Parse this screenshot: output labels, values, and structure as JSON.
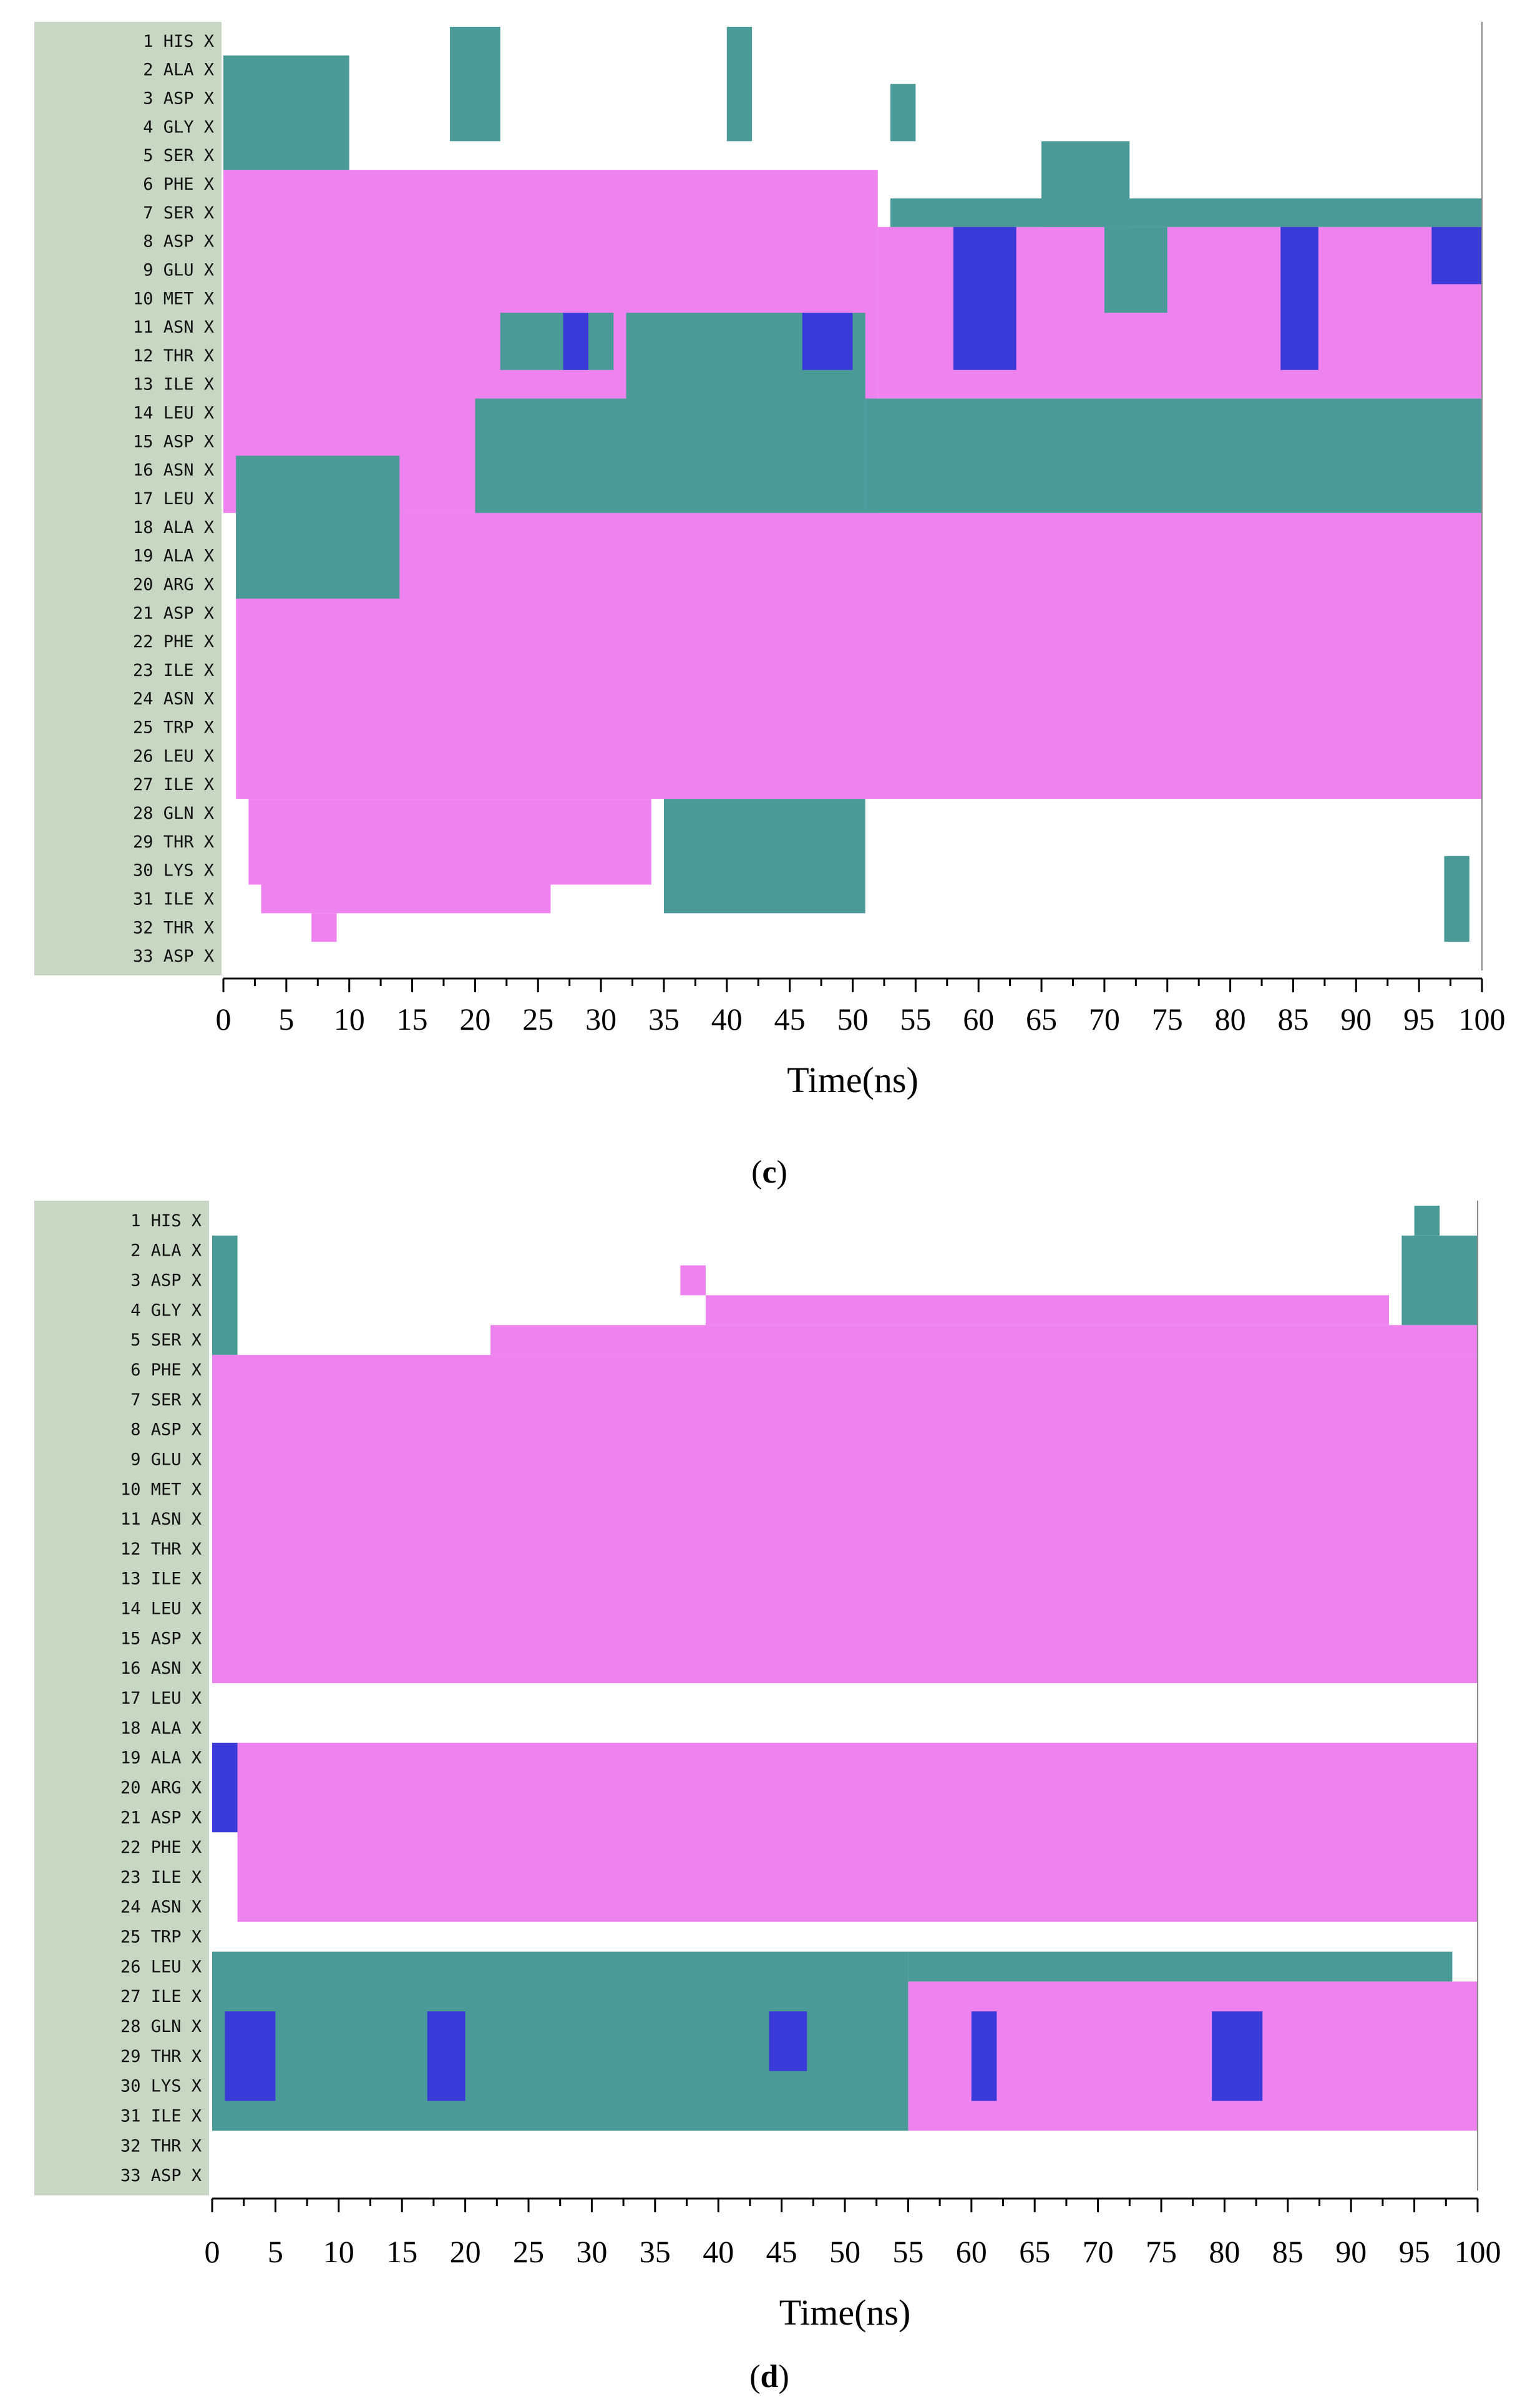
{
  "chart_data": [
    {
      "type": "heatmap",
      "title": "",
      "panel": "c",
      "xlabel": "Time(ns)",
      "ylabel": "",
      "xlim": [
        0,
        100
      ],
      "x_ticks": [
        "0",
        "5",
        "10",
        "15",
        "20",
        "25",
        "30",
        "35",
        "40",
        "45",
        "50",
        "55",
        "60",
        "65",
        "70",
        "75",
        "80",
        "85",
        "90",
        "95",
        "100"
      ],
      "residues": [
        "1 HIS X",
        "2 ALA X",
        "3 ASP X",
        "4 GLY X",
        "5 SER X",
        "6 PHE X",
        "7 SER X",
        "8 ASP X",
        "9 GLU X",
        "10 MET X",
        "11 ASN X",
        "12 THR X",
        "13 ILE X",
        "14 LEU X",
        "15 ASP X",
        "16 ASN X",
        "17 LEU X",
        "18 ALA X",
        "19 ALA X",
        "20 ARG X",
        "21 ASP X",
        "22 PHE X",
        "23 ILE X",
        "24 ASN X",
        "25 TRP X",
        "26 LEU X",
        "27 ILE X",
        "28 GLN X",
        "29 THR X",
        "30 LYS X",
        "31 ILE X",
        "32 THR X",
        "33 ASP X"
      ],
      "segments": [
        {
          "r0": 6,
          "r1": 17,
          "t0": 0,
          "t1": 52,
          "s": "alpha"
        },
        {
          "r0": 8,
          "r1": 13,
          "t0": 52,
          "t1": 100,
          "s": "alpha"
        },
        {
          "r0": 18,
          "r1": 27,
          "t0": 1,
          "t1": 100,
          "s": "alpha"
        },
        {
          "r0": 28,
          "r1": 30,
          "t0": 2,
          "t1": 34,
          "s": "alpha"
        },
        {
          "r0": 31,
          "r1": 31,
          "t0": 3,
          "t1": 26,
          "s": "alpha"
        },
        {
          "r0": 32,
          "r1": 32,
          "t0": 7,
          "t1": 9,
          "s": "alpha"
        },
        {
          "r0": 2,
          "r1": 5,
          "t0": 0,
          "t1": 10,
          "s": "turn"
        },
        {
          "r0": 1,
          "r1": 4,
          "t0": 18,
          "t1": 22,
          "s": "turn"
        },
        {
          "r0": 1,
          "r1": 4,
          "t0": 40,
          "t1": 42,
          "s": "turn"
        },
        {
          "r0": 3,
          "r1": 4,
          "t0": 53,
          "t1": 55,
          "s": "turn"
        },
        {
          "r0": 5,
          "r1": 7,
          "t0": 65,
          "t1": 72,
          "s": "turn"
        },
        {
          "r0": 7,
          "r1": 7,
          "t0": 53,
          "t1": 100,
          "s": "turn"
        },
        {
          "r0": 11,
          "r1": 12,
          "t0": 22,
          "t1": 31,
          "s": "turn"
        },
        {
          "r0": 11,
          "r1": 17,
          "t0": 32,
          "t1": 51,
          "s": "turn"
        },
        {
          "r0": 14,
          "r1": 17,
          "t0": 20,
          "t1": 32,
          "s": "turn"
        },
        {
          "r0": 14,
          "r1": 17,
          "t0": 51,
          "t1": 100,
          "s": "turn"
        },
        {
          "r0": 8,
          "r1": 10,
          "t0": 70,
          "t1": 75,
          "s": "turn"
        },
        {
          "r0": 16,
          "r1": 20,
          "t0": 1,
          "t1": 14,
          "s": "turn"
        },
        {
          "r0": 28,
          "r1": 31,
          "t0": 35,
          "t1": 51,
          "s": "turn"
        },
        {
          "r0": 30,
          "r1": 32,
          "t0": 97,
          "t1": 99,
          "s": "turn"
        },
        {
          "r0": 8,
          "r1": 12,
          "t0": 58,
          "t1": 63,
          "s": "helix310"
        },
        {
          "r0": 8,
          "r1": 12,
          "t0": 84,
          "t1": 87,
          "s": "helix310"
        },
        {
          "r0": 11,
          "r1": 12,
          "t0": 46,
          "t1": 50,
          "s": "helix310"
        },
        {
          "r0": 11,
          "r1": 12,
          "t0": 27,
          "t1": 29,
          "s": "helix310"
        },
        {
          "r0": 8,
          "r1": 9,
          "t0": 96,
          "t1": 100,
          "s": "helix310"
        }
      ],
      "colors": {
        "alpha": "#ee82ee",
        "turn": "#4a9a98",
        "helix310": "#3a3ad8",
        "bridge": "#d63a3a",
        "coil": "#ffffff",
        "panel_bg": "#c8d6c4"
      }
    },
    {
      "type": "heatmap",
      "title": "",
      "panel": "d",
      "xlabel": "Time(ns)",
      "ylabel": "",
      "xlim": [
        0,
        100
      ],
      "x_ticks": [
        "0",
        "5",
        "10",
        "15",
        "20",
        "25",
        "30",
        "35",
        "40",
        "45",
        "50",
        "55",
        "60",
        "65",
        "70",
        "75",
        "80",
        "85",
        "90",
        "95",
        "100"
      ],
      "residues": [
        "1 HIS X",
        "2 ALA X",
        "3 ASP X",
        "4 GLY X",
        "5 SER X",
        "6 PHE X",
        "7 SER X",
        "8 ASP X",
        "9 GLU X",
        "10 MET X",
        "11 ASN X",
        "12 THR X",
        "13 ILE X",
        "14 LEU X",
        "15 ASP X",
        "16 ASN X",
        "17 LEU X",
        "18 ALA X",
        "19 ALA X",
        "20 ARG X",
        "21 ASP X",
        "22 PHE X",
        "23 ILE X",
        "24 ASN X",
        "25 TRP X",
        "26 LEU X",
        "27 ILE X",
        "28 GLN X",
        "29 THR X",
        "30 LYS X",
        "31 ILE X",
        "32 THR X",
        "33 ASP X"
      ],
      "segments": [
        {
          "r0": 6,
          "r1": 16,
          "t0": 0,
          "t1": 100,
          "s": "alpha"
        },
        {
          "r0": 5,
          "r1": 5,
          "t0": 22,
          "t1": 100,
          "s": "alpha"
        },
        {
          "r0": 4,
          "r1": 4,
          "t0": 39,
          "t1": 93,
          "s": "alpha"
        },
        {
          "r0": 3,
          "r1": 3,
          "t0": 37,
          "t1": 39,
          "s": "alpha"
        },
        {
          "r0": 19,
          "r1": 24,
          "t0": 2,
          "t1": 100,
          "s": "alpha"
        },
        {
          "r0": 27,
          "r1": 31,
          "t0": 55,
          "t1": 100,
          "s": "alpha"
        },
        {
          "r0": 2,
          "r1": 5,
          "t0": 0,
          "t1": 2,
          "s": "turn"
        },
        {
          "r0": 2,
          "r1": 4,
          "t0": 94,
          "t1": 100,
          "s": "turn"
        },
        {
          "r0": 1,
          "r1": 1,
          "t0": 95,
          "t1": 97,
          "s": "turn"
        },
        {
          "r0": 26,
          "r1": 31,
          "t0": 0,
          "t1": 55,
          "s": "turn"
        },
        {
          "r0": 26,
          "r1": 26,
          "t0": 55,
          "t1": 98,
          "s": "turn"
        },
        {
          "r0": 28,
          "r1": 30,
          "t0": 1,
          "t1": 5,
          "s": "helix310"
        },
        {
          "r0": 28,
          "r1": 30,
          "t0": 17,
          "t1": 20,
          "s": "helix310"
        },
        {
          "r0": 28,
          "r1": 29,
          "t0": 44,
          "t1": 47,
          "s": "helix310"
        },
        {
          "r0": 28,
          "r1": 30,
          "t0": 79,
          "t1": 83,
          "s": "helix310"
        },
        {
          "r0": 19,
          "r1": 21,
          "t0": 0,
          "t1": 2,
          "s": "helix310"
        },
        {
          "r0": 28,
          "r1": 30,
          "t0": 60,
          "t1": 62,
          "s": "helix310"
        }
      ],
      "colors": {
        "alpha": "#ee82ee",
        "turn": "#4a9a98",
        "helix310": "#3a3ad8",
        "coil": "#ffffff",
        "panel_bg": "#c8d6c4"
      }
    }
  ],
  "captions": {
    "c_open": "(",
    "c_letter": "c",
    "c_close": ")",
    "d_open": "(",
    "d_letter": "d",
    "d_close": ")"
  }
}
